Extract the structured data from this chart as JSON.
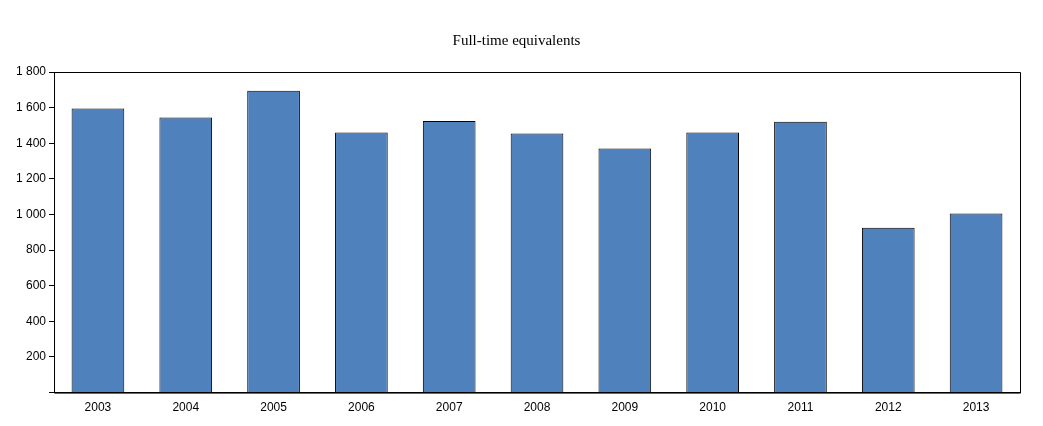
{
  "chart_data": {
    "type": "bar",
    "title": "Full-time equivalents",
    "categories": [
      "2003",
      "2004",
      "2005",
      "2006",
      "2007",
      "2008",
      "2009",
      "2010",
      "2011",
      "2012",
      "2013"
    ],
    "values": [
      1595,
      1545,
      1695,
      1460,
      1525,
      1455,
      1370,
      1460,
      1520,
      925,
      1005
    ],
    "color": "#4f81bd",
    "ylim": [
      0,
      1800
    ],
    "yticks": [
      {
        "value": 0,
        "label": null
      },
      {
        "value": 200,
        "label": "200"
      },
      {
        "value": 400,
        "label": "400"
      },
      {
        "value": 600,
        "label": "600"
      },
      {
        "value": 800,
        "label": "800"
      },
      {
        "value": 1000,
        "label": "1 000"
      },
      {
        "value": 1200,
        "label": "1 200"
      },
      {
        "value": 1400,
        "label": "1 400"
      },
      {
        "value": 1600,
        "label": "1 600"
      },
      {
        "value": 1800,
        "label": "1 800"
      }
    ],
    "grid": false,
    "legend": false
  }
}
